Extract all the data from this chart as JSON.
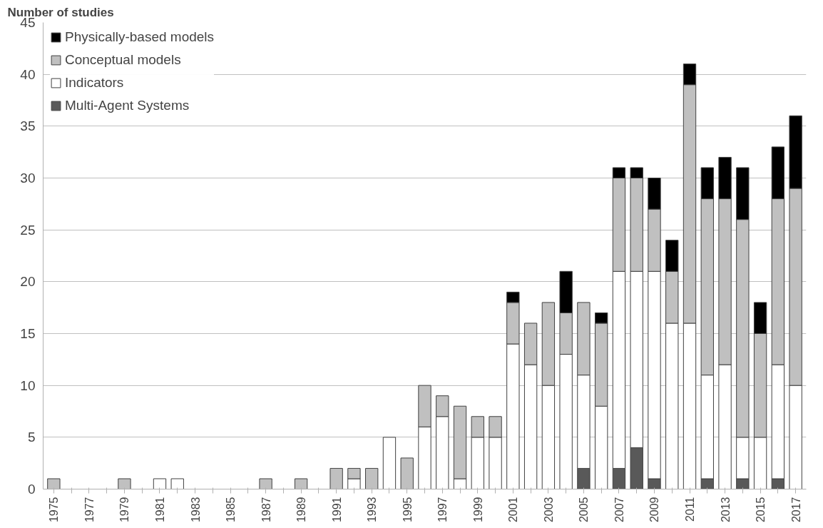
{
  "chart_data": {
    "type": "bar",
    "stacked": true,
    "ylabel": "Number of studies",
    "categories": [
      "1975",
      null,
      "1977",
      null,
      "1979",
      null,
      "1981",
      null,
      "1983",
      null,
      "1985",
      null,
      "1987",
      null,
      "1989",
      null,
      "1991",
      null,
      "1993",
      null,
      "1995",
      null,
      "1997",
      null,
      "1999",
      null,
      "2001",
      null,
      "2003",
      null,
      "2005",
      null,
      "2007",
      null,
      "2009",
      null,
      "2011",
      null,
      "2013",
      null,
      "2015",
      null,
      "2017"
    ],
    "series": [
      {
        "name": "Multi-Agent Systems",
        "color": "#595959",
        "values": [
          0,
          0,
          0,
          0,
          0,
          0,
          0,
          0,
          0,
          0,
          0,
          0,
          0,
          0,
          0,
          0,
          0,
          0,
          0,
          0,
          0,
          0,
          0,
          0,
          0,
          0,
          0,
          0,
          0,
          0,
          2,
          0,
          2,
          4,
          1,
          0,
          0,
          1,
          0,
          1,
          0,
          1,
          0
        ]
      },
      {
        "name": "Indicators",
        "color": "#ffffff",
        "values": [
          0,
          0,
          0,
          0,
          0,
          0,
          1,
          1,
          0,
          0,
          0,
          0,
          0,
          0,
          0,
          0,
          0,
          1,
          0,
          5,
          0,
          6,
          7,
          1,
          5,
          5,
          14,
          12,
          10,
          13,
          9,
          8,
          19,
          17,
          20,
          16,
          16,
          10,
          12,
          4,
          5,
          11,
          10
        ]
      },
      {
        "name": "Conceptual models",
        "color": "#c0c0c0",
        "values": [
          1,
          0,
          0,
          0,
          1,
          0,
          0,
          0,
          0,
          0,
          0,
          0,
          1,
          0,
          1,
          0,
          2,
          1,
          2,
          0,
          3,
          4,
          2,
          7,
          2,
          2,
          4,
          4,
          8,
          4,
          7,
          8,
          9,
          9,
          6,
          5,
          23,
          17,
          16,
          21,
          10,
          16,
          19
        ]
      },
      {
        "name": "Physically-based models",
        "color": "#000000",
        "values": [
          0,
          0,
          0,
          0,
          0,
          0,
          0,
          0,
          0,
          0,
          0,
          0,
          0,
          0,
          0,
          0,
          0,
          0,
          0,
          0,
          0,
          0,
          0,
          0,
          0,
          0,
          1,
          0,
          0,
          4,
          0,
          1,
          1,
          1,
          3,
          3,
          2,
          3,
          4,
          5,
          3,
          5,
          7
        ]
      }
    ],
    "ylim": [
      0,
      45
    ],
    "yticks": [
      0,
      5,
      10,
      15,
      20,
      25,
      30,
      35,
      40,
      45
    ],
    "grid": "y",
    "legend": "top left"
  }
}
